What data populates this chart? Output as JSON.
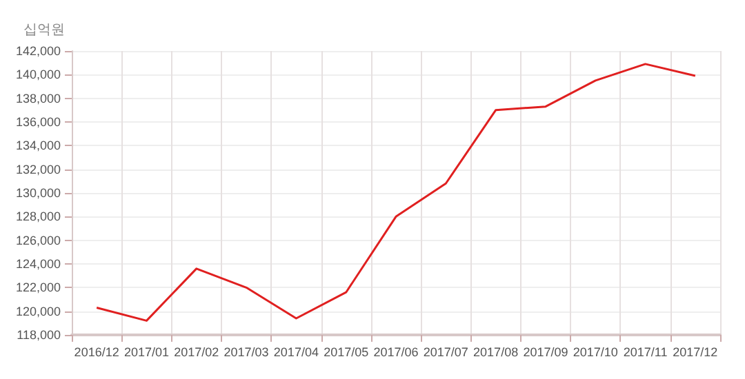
{
  "chart_data": {
    "type": "line",
    "ylabel": "십억원",
    "categories": [
      "2016/12",
      "2017/01",
      "2017/02",
      "2017/03",
      "2017/04",
      "2017/05",
      "2017/06",
      "2017/07",
      "2017/08",
      "2017/09",
      "2017/10",
      "2017/11",
      "2017/12"
    ],
    "series": [
      {
        "color": "#e02020",
        "values": [
          120300,
          119200,
          123600,
          122000,
          119400,
          121600,
          128000,
          130800,
          137000,
          137300,
          139500,
          140900,
          139900
        ]
      }
    ],
    "ylim": [
      118000,
      142000
    ],
    "yticks": [
      {
        "value": 118000,
        "label": "118,000"
      },
      {
        "value": 120000,
        "label": "120,000"
      },
      {
        "value": 122000,
        "label": "122,000"
      },
      {
        "value": 124000,
        "label": "124,000"
      },
      {
        "value": 126000,
        "label": "126,000"
      },
      {
        "value": 128000,
        "label": "128,000"
      },
      {
        "value": 130000,
        "label": "130,000"
      },
      {
        "value": 132000,
        "label": "132,000"
      },
      {
        "value": 134000,
        "label": "134,000"
      },
      {
        "value": 136000,
        "label": "136,000"
      },
      {
        "value": 138000,
        "label": "138,000"
      },
      {
        "value": 140000,
        "label": "140,000"
      },
      {
        "value": 142000,
        "label": "142,000"
      }
    ],
    "grid": true,
    "marker": "none",
    "line_style": "solid"
  }
}
